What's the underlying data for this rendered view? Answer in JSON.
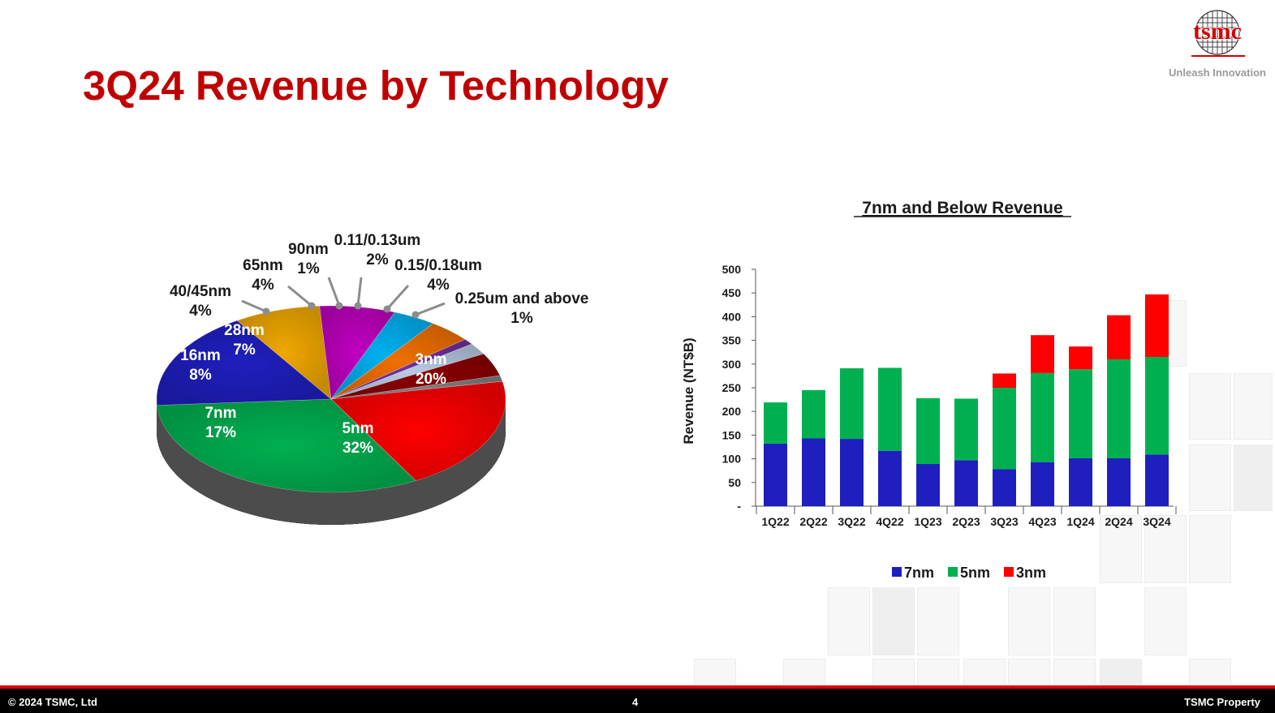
{
  "header": {
    "title": "3Q24 Revenue by Technology",
    "logo_text": "tsmc",
    "tagline": "Unleash Innovation"
  },
  "footer": {
    "copyright": "© 2024 TSMC, Ltd",
    "page_number": "4",
    "property": "TSMC Property"
  },
  "colors": {
    "brand_red": "#c00000",
    "n3": "#ff0000",
    "n5": "#00b050",
    "n7": "#1f1fbf",
    "n16": "#f0a800",
    "n28": "#c000c0",
    "n40": "#00b0f0",
    "n65": "#f07000",
    "n90": "#7030a0",
    "n011": "#b8cce4",
    "n015": "#8b0000",
    "n025": "#7f7f7f"
  },
  "chart_data": [
    {
      "type": "pie",
      "title": "",
      "slices": [
        {
          "label": "3nm",
          "pct_label": "20%",
          "value": 20,
          "color": "#ff0000"
        },
        {
          "label": "5nm",
          "pct_label": "32%",
          "value": 32,
          "color": "#00b050"
        },
        {
          "label": "7nm",
          "pct_label": "17%",
          "value": 17,
          "color": "#1f1fbf"
        },
        {
          "label": "16nm",
          "pct_label": "8%",
          "value": 8,
          "color": "#f0a800"
        },
        {
          "label": "28nm",
          "pct_label": "7%",
          "value": 7,
          "color": "#c000c0"
        },
        {
          "label": "40/45nm",
          "pct_label": "4%",
          "value": 4,
          "color": "#00b0f0"
        },
        {
          "label": "65nm",
          "pct_label": "4%",
          "value": 4,
          "color": "#f07000"
        },
        {
          "label": "90nm",
          "pct_label": "1%",
          "value": 1,
          "color": "#7030a0"
        },
        {
          "label": "0.11/0.13um",
          "pct_label": "2%",
          "value": 2,
          "color": "#b8cce4"
        },
        {
          "label": "0.15/0.18um",
          "pct_label": "4%",
          "value": 4,
          "color": "#8b0000"
        },
        {
          "label": "0.25um and above",
          "pct_label": "1%",
          "value": 1,
          "color": "#7f7f7f"
        }
      ]
    },
    {
      "type": "bar",
      "stacked": true,
      "title": "7nm and Below Revenue",
      "ylabel": "Revenue (NT$B)",
      "xlabel": "",
      "ylim": [
        0,
        500
      ],
      "yticks": [
        "-",
        "50",
        "100",
        "150",
        "200",
        "250",
        "300",
        "350",
        "400",
        "450",
        "500"
      ],
      "categories": [
        "1Q22",
        "2Q22",
        "3Q22",
        "4Q22",
        "1Q23",
        "2Q23",
        "3Q23",
        "4Q23",
        "1Q24",
        "2Q24",
        "3Q24"
      ],
      "series": [
        {
          "name": "7nm",
          "color": "#1f1fbf",
          "values": [
            132,
            143,
            142,
            117,
            89,
            97,
            78,
            93,
            101,
            101,
            109
          ]
        },
        {
          "name": "5nm",
          "color": "#00b050",
          "values": [
            87,
            102,
            149,
            175,
            139,
            130,
            172,
            188,
            188,
            209,
            206
          ]
        },
        {
          "name": "3nm",
          "color": "#ff0000",
          "values": [
            0,
            0,
            0,
            0,
            0,
            0,
            30,
            80,
            48,
            93,
            132
          ]
        }
      ],
      "legend": "bottom",
      "grid": false
    }
  ]
}
